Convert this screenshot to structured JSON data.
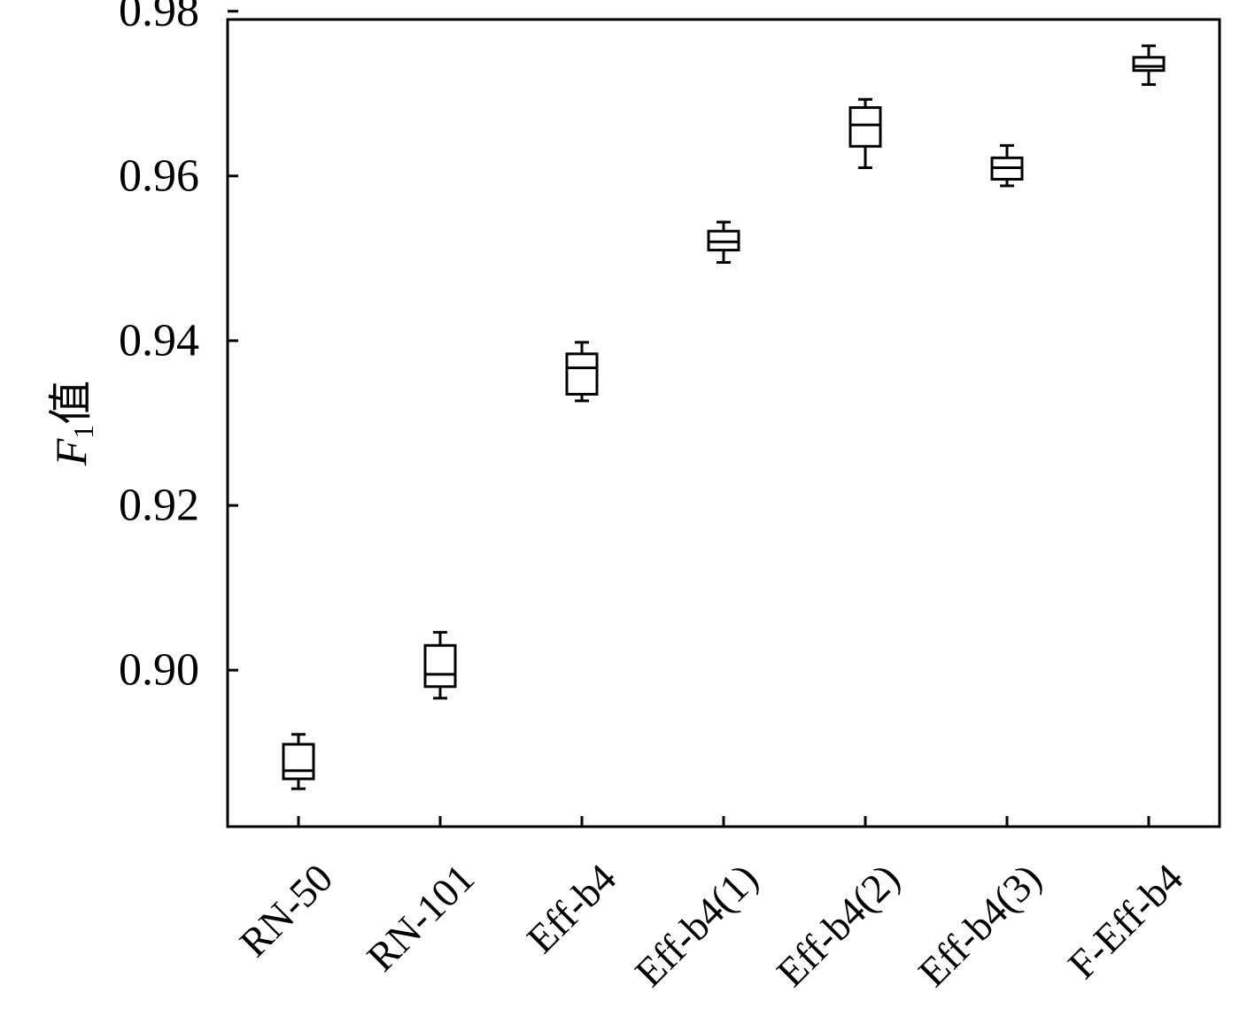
{
  "chart_data": {
    "type": "box",
    "ylabel": {
      "main": "F",
      "subscript": "1",
      "suffix": "值"
    },
    "ylim": [
      0.881,
      0.979
    ],
    "yticks": [
      0.9,
      0.92,
      0.94,
      0.96,
      0.98
    ],
    "ytick_labels": [
      "0.90",
      "0.92",
      "0.94",
      "0.96",
      "0.98"
    ],
    "grid": false,
    "categories": [
      "RN-50",
      "RN-101",
      "Eff-b4",
      "Eff-b4(1)",
      "Eff-b4(2)",
      "Eff-b4(3)",
      "F-Eff-b4"
    ],
    "boxes": [
      {
        "category": "RN-50",
        "min": 0.8856,
        "q1": 0.8868,
        "median": 0.8878,
        "q3": 0.891,
        "max": 0.8922
      },
      {
        "category": "RN-101",
        "min": 0.8966,
        "q1": 0.898,
        "median": 0.8995,
        "q3": 0.903,
        "max": 0.9046
      },
      {
        "category": "Eff-b4",
        "min": 0.9327,
        "q1": 0.9335,
        "median": 0.9367,
        "q3": 0.9384,
        "max": 0.9398
      },
      {
        "category": "Eff-b4(1)",
        "min": 0.9495,
        "q1": 0.951,
        "median": 0.952,
        "q3": 0.9533,
        "max": 0.9544
      },
      {
        "category": "Eff-b4(2)",
        "min": 0.961,
        "q1": 0.9636,
        "median": 0.9662,
        "q3": 0.9683,
        "max": 0.9693
      },
      {
        "category": "Eff-b4(3)",
        "min": 0.9588,
        "q1": 0.9596,
        "median": 0.961,
        "q3": 0.9622,
        "max": 0.9637
      },
      {
        "category": "F-Eff-b4",
        "min": 0.9711,
        "q1": 0.9728,
        "median": 0.9733,
        "q3": 0.9744,
        "max": 0.9758
      }
    ]
  }
}
